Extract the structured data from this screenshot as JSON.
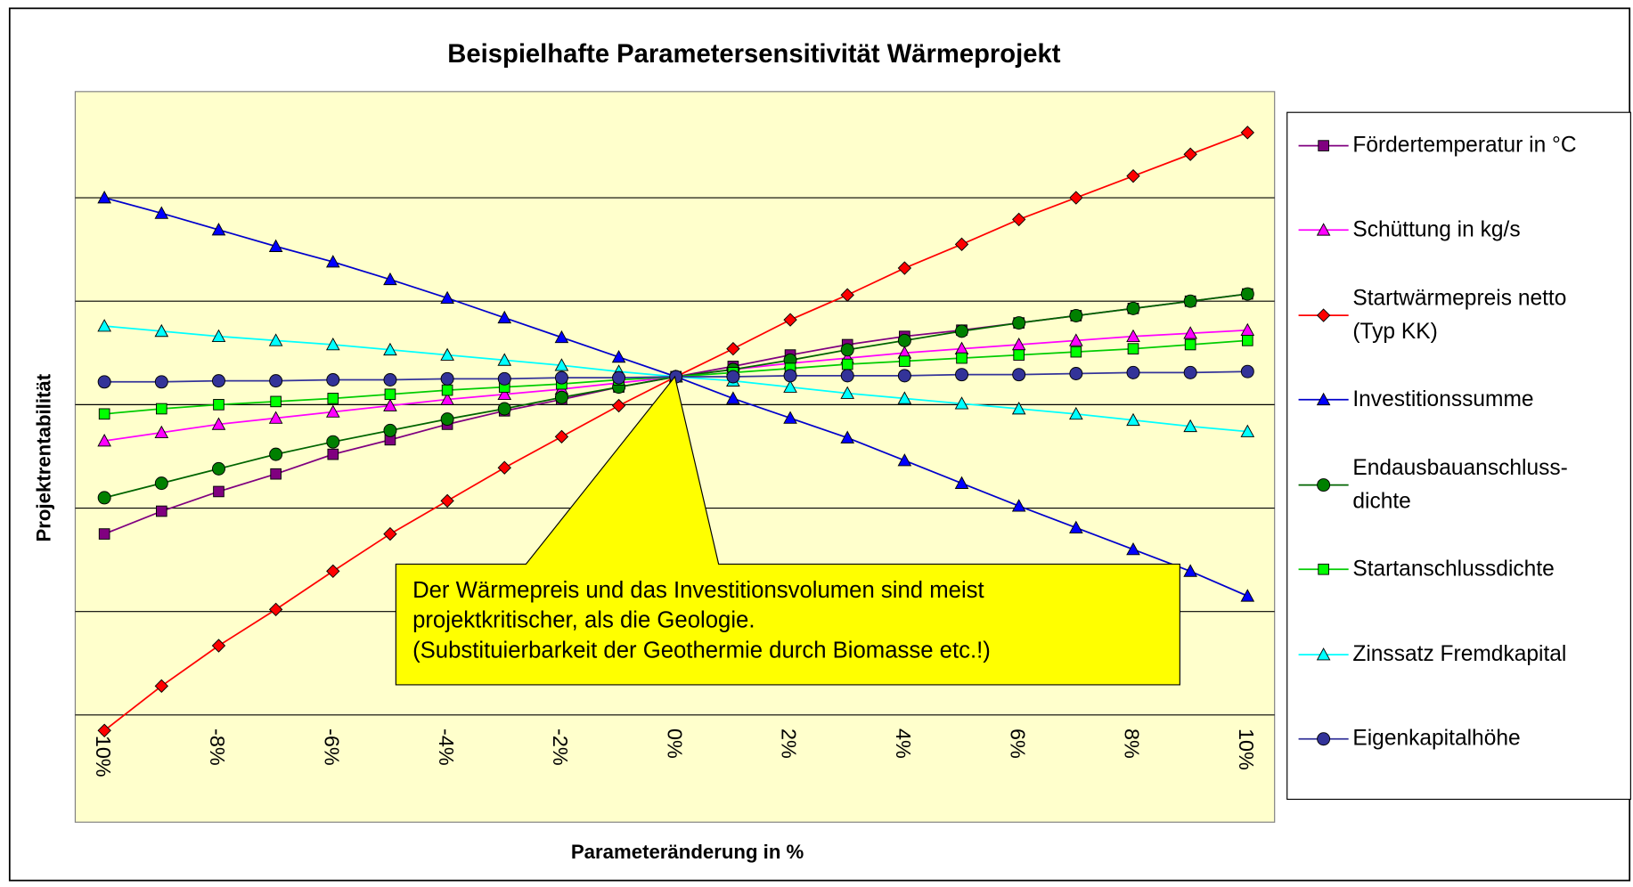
{
  "chart_data": {
    "type": "line",
    "title": "Beispielhafte Parametersensitivität Wärmeprojekt",
    "x_label": "Parameteränderung in %",
    "y_label": "Projektrentabilität",
    "categories": [
      "-10%",
      null,
      "-8%",
      null,
      "-6%",
      null,
      "-4%",
      null,
      "-2%",
      null,
      "0%",
      null,
      "2%",
      null,
      "4%",
      null,
      "6%",
      null,
      "8%",
      null,
      "10%"
    ],
    "ylim": [
      0,
      6
    ],
    "yticks": [
      1,
      2,
      3,
      4,
      5
    ],
    "grid": true,
    "legend": "right",
    "annotation": [
      "Der Wärmepreis und das Investitionsvolumen sind meist",
      "projektkritischer, als die Geologie.",
      "(Substituierbarkeit der Geothermie durch Biomasse etc.!)"
    ],
    "series": [
      {
        "name": "Fördertemperatur in °C",
        "color": "#800080",
        "marker": "square",
        "marker_color": "#800080",
        "values": [
          1.75,
          1.97,
          2.16,
          2.33,
          2.52,
          2.66,
          2.81,
          2.94,
          3.05,
          3.17,
          3.27,
          3.37,
          3.48,
          3.58,
          3.66,
          3.72,
          3.79,
          3.86,
          3.93,
          4.0,
          4.07
        ]
      },
      {
        "name": "Schüttung in kg/s",
        "color": "#FF00FF",
        "marker": "triangle",
        "marker_color": "#FF00FF",
        "values": [
          2.65,
          2.73,
          2.81,
          2.87,
          2.93,
          2.99,
          3.05,
          3.1,
          3.15,
          3.21,
          3.27,
          3.34,
          3.4,
          3.45,
          3.5,
          3.54,
          3.58,
          3.62,
          3.66,
          3.69,
          3.72
        ]
      },
      {
        "name": "Startwärmepreis netto (Typ KK)",
        "color": "#FF0000",
        "marker": "diamond",
        "marker_color": "#FF0000",
        "values": [
          -0.15,
          0.28,
          0.67,
          1.02,
          1.39,
          1.75,
          2.07,
          2.39,
          2.69,
          2.99,
          3.27,
          3.54,
          3.82,
          4.06,
          4.32,
          4.55,
          4.79,
          5.0,
          5.21,
          5.42,
          5.63
        ]
      },
      {
        "name": "Investitionssumme",
        "color": "#0000CC",
        "marker": "triangle",
        "marker_color": "#0000FF",
        "values": [
          5.0,
          4.85,
          4.69,
          4.53,
          4.38,
          4.21,
          4.03,
          3.84,
          3.65,
          3.46,
          3.27,
          3.06,
          2.87,
          2.68,
          2.46,
          2.24,
          2.02,
          1.81,
          1.6,
          1.39,
          1.15
        ]
      },
      {
        "name": "Endausbauanschluss-dichte",
        "color": "#006400",
        "marker": "circle",
        "marker_color": "#008000",
        "values": [
          2.1,
          2.24,
          2.38,
          2.52,
          2.64,
          2.75,
          2.86,
          2.96,
          3.07,
          3.17,
          3.27,
          3.34,
          3.43,
          3.53,
          3.62,
          3.71,
          3.79,
          3.86,
          3.93,
          4.0,
          4.07
        ]
      },
      {
        "name": "Startanschlussdichte",
        "color": "#00CC00",
        "marker": "square",
        "marker_color": "#00FF00",
        "values": [
          2.91,
          2.96,
          3.0,
          3.03,
          3.06,
          3.1,
          3.14,
          3.17,
          3.2,
          3.24,
          3.27,
          3.31,
          3.35,
          3.39,
          3.42,
          3.45,
          3.48,
          3.51,
          3.54,
          3.58,
          3.62
        ]
      },
      {
        "name": "Zinssatz Fremdkapital",
        "color": "#00FFFF",
        "marker": "triangle",
        "marker_color": "#00FFFF",
        "values": [
          3.76,
          3.71,
          3.66,
          3.62,
          3.58,
          3.53,
          3.48,
          3.43,
          3.38,
          3.32,
          3.27,
          3.23,
          3.17,
          3.11,
          3.06,
          3.01,
          2.96,
          2.91,
          2.85,
          2.79,
          2.74
        ]
      },
      {
        "name": "Eigenkapitalhöhe",
        "color": "#333399",
        "marker": "circle",
        "marker_color": "#333399",
        "values": [
          3.22,
          3.22,
          3.23,
          3.23,
          3.24,
          3.24,
          3.25,
          3.25,
          3.26,
          3.26,
          3.27,
          3.27,
          3.28,
          3.28,
          3.28,
          3.29,
          3.29,
          3.3,
          3.31,
          3.31,
          3.32
        ]
      }
    ]
  }
}
